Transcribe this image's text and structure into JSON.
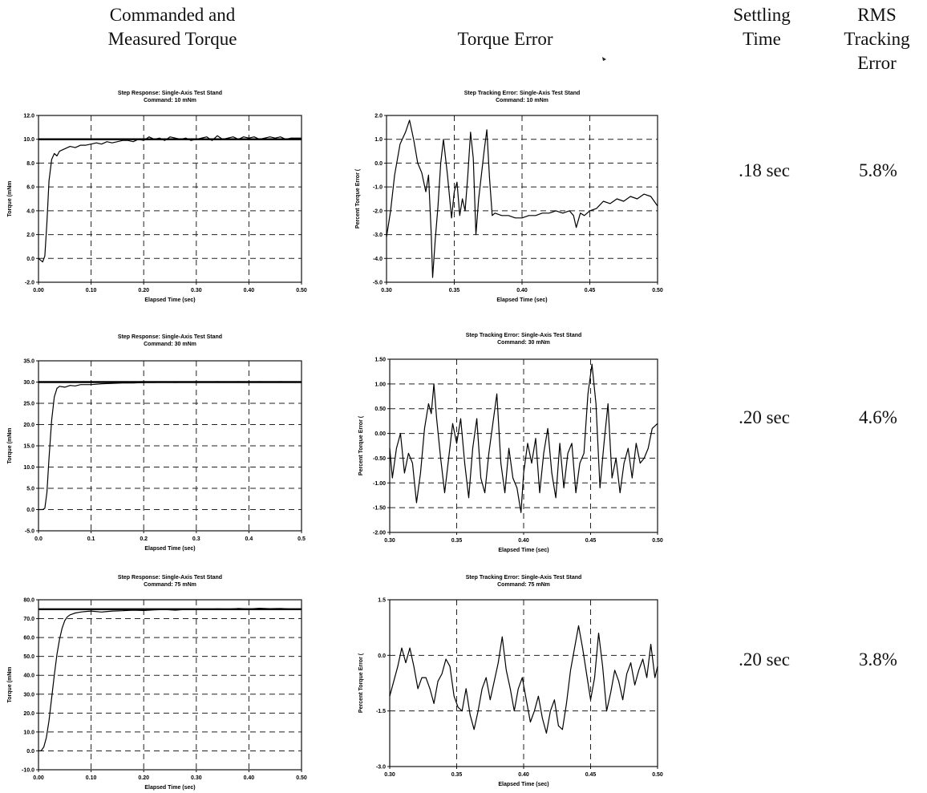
{
  "headers": {
    "col1": [
      "Commanded and",
      "Measured Torque"
    ],
    "col2": [
      "Torque Error"
    ],
    "col3": [
      "Settling",
      "Time"
    ],
    "col4": [
      "RMS",
      "Tracking",
      "Error"
    ]
  },
  "rows": [
    {
      "settling_time": ".18 sec",
      "rms_error": "5.8%"
    },
    {
      "settling_time": ".20 sec",
      "rms_error": "4.6%"
    },
    {
      "settling_time": ".20 sec",
      "rms_error": "3.8%"
    }
  ],
  "chart_data": [
    {
      "type": "line",
      "title": "Step Response: Single-Axis Test Stand",
      "subtitle": "Command: 10 mNm",
      "xlabel": "Elapsed Time (sec)",
      "ylabel": "Torque (mNm",
      "xlim": [
        0,
        0.5
      ],
      "ylim": [
        -2,
        12
      ],
      "xticks": [
        0,
        0.1,
        0.2,
        0.3,
        0.4,
        0.5
      ],
      "xtick_labels": [
        "0.00",
        "0.10",
        "0.20",
        "0.30",
        "0.40",
        "0.50"
      ],
      "yticks": [
        -2,
        0,
        2,
        4,
        6,
        8,
        10,
        12
      ],
      "ytick_labels": [
        "-2.0",
        "0.0",
        "2.0",
        "4.0",
        "6.0",
        "8.0",
        "10.0",
        "12.0"
      ],
      "grid": true,
      "series": [
        {
          "role": "command",
          "x": [
            0,
            0.5
          ],
          "y": [
            10,
            10
          ]
        },
        {
          "role": "measured",
          "x": [
            0,
            0.008,
            0.012,
            0.016,
            0.02,
            0.025,
            0.03,
            0.035,
            0.04,
            0.05,
            0.06,
            0.07,
            0.08,
            0.09,
            0.1,
            0.11,
            0.12,
            0.13,
            0.14,
            0.15,
            0.16,
            0.17,
            0.18,
            0.19,
            0.2,
            0.21,
            0.22,
            0.23,
            0.24,
            0.25,
            0.26,
            0.27,
            0.28,
            0.29,
            0.3,
            0.31,
            0.32,
            0.33,
            0.34,
            0.35,
            0.36,
            0.37,
            0.38,
            0.39,
            0.4,
            0.41,
            0.42,
            0.43,
            0.44,
            0.45,
            0.46,
            0.47,
            0.48,
            0.49,
            0.5
          ],
          "y": [
            0.0,
            -0.3,
            0.2,
            3.0,
            6.5,
            8.3,
            8.8,
            8.6,
            9.0,
            9.2,
            9.4,
            9.3,
            9.5,
            9.5,
            9.6,
            9.7,
            9.6,
            9.8,
            9.7,
            9.8,
            9.9,
            9.9,
            9.8,
            10.0,
            9.9,
            10.2,
            10.0,
            10.1,
            9.9,
            10.2,
            10.1,
            10.0,
            10.1,
            9.9,
            10.0,
            10.1,
            10.2,
            9.9,
            10.3,
            10.0,
            10.1,
            10.2,
            10.0,
            10.2,
            10.1,
            10.2,
            10.0,
            10.1,
            10.2,
            10.1,
            10.2,
            10.0,
            10.1,
            10.1,
            10.1
          ]
        }
      ]
    },
    {
      "type": "line",
      "title": "Step Tracking Error: Single-Axis Test Stand",
      "subtitle": "Command: 10 mNm",
      "xlabel": "Elapsed Time (sec)",
      "ylabel": "Percent Torque Error (",
      "xlim": [
        0.3,
        0.5
      ],
      "ylim": [
        -5,
        2
      ],
      "xticks": [
        0.3,
        0.35,
        0.4,
        0.45,
        0.5
      ],
      "xtick_labels": [
        "0.30",
        "0.35",
        "0.40",
        "0.45",
        "0.50"
      ],
      "yticks": [
        -5,
        -4,
        -3,
        -2,
        -1,
        0,
        1,
        2
      ],
      "ytick_labels": [
        "-5.0",
        "-4.0",
        "-3.0",
        "-2.0",
        "-1.0",
        "0.0",
        "1.0",
        "2.0"
      ],
      "grid": true,
      "series": [
        {
          "role": "error",
          "x": [
            0.3,
            0.303,
            0.306,
            0.31,
            0.314,
            0.317,
            0.32,
            0.323,
            0.326,
            0.329,
            0.331,
            0.333,
            0.334,
            0.336,
            0.338,
            0.34,
            0.342,
            0.345,
            0.348,
            0.35,
            0.352,
            0.354,
            0.356,
            0.358,
            0.36,
            0.362,
            0.364,
            0.366,
            0.368,
            0.37,
            0.372,
            0.374,
            0.376,
            0.378,
            0.38,
            0.385,
            0.39,
            0.395,
            0.4,
            0.405,
            0.41,
            0.415,
            0.42,
            0.425,
            0.43,
            0.435,
            0.438,
            0.44,
            0.443,
            0.446,
            0.45,
            0.455,
            0.46,
            0.465,
            0.47,
            0.475,
            0.48,
            0.485,
            0.49,
            0.495,
            0.5
          ],
          "y": [
            -3.1,
            -2.0,
            -0.5,
            0.8,
            1.3,
            1.8,
            1.0,
            0.0,
            -0.4,
            -1.2,
            -0.5,
            -3.0,
            -4.8,
            -3.2,
            -1.8,
            0.0,
            1.0,
            -0.5,
            -2.3,
            -1.2,
            -0.8,
            -2.2,
            -1.5,
            -2.0,
            -0.5,
            1.3,
            0.2,
            -3.0,
            -1.5,
            -0.5,
            0.5,
            1.4,
            -0.6,
            -2.2,
            -2.1,
            -2.2,
            -2.2,
            -2.3,
            -2.3,
            -2.2,
            -2.2,
            -2.1,
            -2.1,
            -2.0,
            -2.1,
            -2.0,
            -2.2,
            -2.7,
            -2.1,
            -2.2,
            -2.0,
            -1.9,
            -1.6,
            -1.7,
            -1.5,
            -1.6,
            -1.4,
            -1.5,
            -1.3,
            -1.4,
            -1.8
          ]
        }
      ]
    },
    {
      "type": "line",
      "title": "Step Response: Single-Axis Test Stand",
      "subtitle": "Command: 30 mNm",
      "xlabel": "Elapsed Time (sec)",
      "ylabel": "Torque (mNm",
      "xlim": [
        0,
        0.5
      ],
      "ylim": [
        -5,
        35
      ],
      "xticks": [
        0,
        0.1,
        0.2,
        0.3,
        0.4,
        0.5
      ],
      "xtick_labels": [
        "0.0",
        "0.1",
        "0.2",
        "0.3",
        "0.4",
        "0.5"
      ],
      "yticks": [
        -5,
        0,
        5,
        10,
        15,
        20,
        25,
        30,
        35
      ],
      "ytick_labels": [
        "-5.0",
        "0.0",
        "5.0",
        "10.0",
        "15.0",
        "20.0",
        "25.0",
        "30.0",
        "35.0"
      ],
      "grid": true,
      "series": [
        {
          "role": "command",
          "x": [
            0,
            0.5
          ],
          "y": [
            30,
            30
          ]
        },
        {
          "role": "measured",
          "x": [
            0,
            0.008,
            0.012,
            0.016,
            0.02,
            0.025,
            0.03,
            0.035,
            0.04,
            0.05,
            0.06,
            0.07,
            0.08,
            0.1,
            0.12,
            0.14,
            0.16,
            0.18,
            0.2,
            0.22,
            0.24,
            0.26,
            0.28,
            0.3,
            0.32,
            0.34,
            0.36,
            0.38,
            0.4,
            0.42,
            0.44,
            0.46,
            0.48,
            0.5
          ],
          "y": [
            0.0,
            0.0,
            0.3,
            4.0,
            12.0,
            21.0,
            26.5,
            28.5,
            29.0,
            28.8,
            29.2,
            29.1,
            29.4,
            29.4,
            29.6,
            29.7,
            29.8,
            29.8,
            29.9,
            29.9,
            30.0,
            29.9,
            30.0,
            30.0,
            30.0,
            30.1,
            30.0,
            30.1,
            30.0,
            30.1,
            30.0,
            30.1,
            30.0,
            30.0
          ]
        }
      ]
    },
    {
      "type": "line",
      "title": "Step Tracking Error: Single-Axis Test Stand",
      "subtitle": "Command: 30 mNm",
      "xlabel": "Elapsed Time (sec)",
      "ylabel": "Percent Torque Error (",
      "xlim": [
        0.3,
        0.5
      ],
      "ylim": [
        -2,
        1.5
      ],
      "xticks": [
        0.3,
        0.35,
        0.4,
        0.45,
        0.5
      ],
      "xtick_labels": [
        "0.30",
        "0.35",
        "0.40",
        "0.45",
        "0.50"
      ],
      "yticks": [
        -2,
        -1.5,
        -1,
        -0.5,
        0,
        0.5,
        1,
        1.5
      ],
      "ytick_labels": [
        "-2.00",
        "-1.50",
        "-1.00",
        "-0.50",
        "0.00",
        "0.50",
        "1.00",
        "1.50"
      ],
      "grid": true,
      "series": [
        {
          "role": "error",
          "x": [
            0.3,
            0.302,
            0.305,
            0.308,
            0.311,
            0.314,
            0.317,
            0.32,
            0.323,
            0.326,
            0.329,
            0.331,
            0.333,
            0.335,
            0.338,
            0.341,
            0.344,
            0.347,
            0.35,
            0.353,
            0.356,
            0.359,
            0.362,
            0.365,
            0.368,
            0.371,
            0.374,
            0.377,
            0.38,
            0.383,
            0.386,
            0.389,
            0.392,
            0.395,
            0.398,
            0.4,
            0.403,
            0.406,
            0.409,
            0.412,
            0.415,
            0.418,
            0.421,
            0.424,
            0.427,
            0.43,
            0.433,
            0.436,
            0.439,
            0.442,
            0.445,
            0.448,
            0.451,
            0.454,
            0.457,
            0.46,
            0.463,
            0.466,
            0.469,
            0.472,
            0.475,
            0.478,
            0.481,
            0.484,
            0.487,
            0.49,
            0.493,
            0.496,
            0.5
          ],
          "y": [
            -0.3,
            -0.9,
            -0.3,
            0.0,
            -0.8,
            -0.4,
            -0.6,
            -1.4,
            -0.8,
            0.1,
            0.6,
            0.4,
            1.0,
            0.3,
            -0.5,
            -1.2,
            -0.5,
            0.2,
            -0.2,
            0.3,
            -0.6,
            -1.3,
            -0.3,
            0.3,
            -0.9,
            -1.2,
            -0.4,
            0.2,
            0.8,
            -0.6,
            -1.2,
            -0.3,
            -0.9,
            -1.1,
            -1.6,
            -0.8,
            -0.2,
            -0.6,
            -0.1,
            -1.2,
            -0.4,
            0.1,
            -0.8,
            -1.3,
            -0.2,
            -1.1,
            -0.4,
            -0.2,
            -1.2,
            -0.6,
            -0.4,
            0.8,
            1.4,
            0.6,
            -1.1,
            -0.2,
            0.6,
            -0.9,
            -0.5,
            -1.2,
            -0.6,
            -0.3,
            -0.9,
            -0.2,
            -0.6,
            -0.5,
            -0.3,
            0.1,
            0.2
          ]
        }
      ]
    },
    {
      "type": "line",
      "title": "Step Response: Single-Axis Test Stand",
      "subtitle": "Command: 75 mNm",
      "xlabel": "Elapsed Time (sec)",
      "ylabel": "Torque (mNm",
      "xlim": [
        0,
        0.5
      ],
      "ylim": [
        -10,
        80
      ],
      "xticks": [
        0,
        0.1,
        0.2,
        0.3,
        0.4,
        0.5
      ],
      "xtick_labels": [
        "0.00",
        "0.10",
        "0.20",
        "0.30",
        "0.40",
        "0.50"
      ],
      "yticks": [
        -10,
        0,
        10,
        20,
        30,
        40,
        50,
        60,
        70,
        80
      ],
      "ytick_labels": [
        "-10.0",
        "0.0",
        "10.0",
        "20.0",
        "30.0",
        "40.0",
        "50.0",
        "60.0",
        "70.0",
        "80.0"
      ],
      "grid": true,
      "series": [
        {
          "role": "command",
          "x": [
            0,
            0.5
          ],
          "y": [
            75,
            75
          ]
        },
        {
          "role": "measured",
          "x": [
            0,
            0.005,
            0.01,
            0.015,
            0.02,
            0.025,
            0.03,
            0.035,
            0.04,
            0.045,
            0.05,
            0.055,
            0.06,
            0.065,
            0.07,
            0.08,
            0.09,
            0.1,
            0.12,
            0.14,
            0.16,
            0.18,
            0.2,
            0.22,
            0.24,
            0.26,
            0.28,
            0.3,
            0.32,
            0.34,
            0.36,
            0.38,
            0.4,
            0.42,
            0.44,
            0.46,
            0.48,
            0.5
          ],
          "y": [
            0.0,
            0.0,
            2.0,
            7.0,
            16.0,
            28.0,
            40.0,
            51.0,
            59.0,
            65.0,
            69.0,
            71.0,
            72.0,
            72.5,
            73.0,
            73.5,
            73.8,
            74.0,
            73.5,
            74.0,
            74.2,
            74.5,
            74.3,
            74.6,
            74.8,
            74.5,
            74.9,
            75.0,
            74.8,
            75.2,
            75.0,
            75.4,
            75.1,
            75.5,
            75.3,
            75.4,
            75.1,
            75.2
          ]
        }
      ]
    },
    {
      "type": "line",
      "title": "Step Tracking Error: Single-Axis Test Stand",
      "subtitle": "Command: 75 mNm",
      "xlabel": "Elapsed Time (sec)",
      "ylabel": "Percent Torque Error (",
      "xlim": [
        0.3,
        0.5
      ],
      "ylim": [
        -3,
        1.5
      ],
      "xticks": [
        0.3,
        0.35,
        0.4,
        0.45,
        0.5
      ],
      "xtick_labels": [
        "0.30",
        "0.35",
        "0.40",
        "0.45",
        "0.50"
      ],
      "yticks": [
        -3,
        -1.5,
        0,
        1.5
      ],
      "ytick_labels": [
        "-3.0",
        "-1.5",
        "0.0",
        "1.5"
      ],
      "grid": true,
      "series": [
        {
          "role": "error",
          "x": [
            0.3,
            0.303,
            0.306,
            0.309,
            0.312,
            0.315,
            0.318,
            0.321,
            0.324,
            0.327,
            0.33,
            0.333,
            0.336,
            0.339,
            0.342,
            0.345,
            0.348,
            0.351,
            0.354,
            0.357,
            0.36,
            0.363,
            0.366,
            0.369,
            0.372,
            0.375,
            0.378,
            0.381,
            0.384,
            0.387,
            0.39,
            0.393,
            0.396,
            0.399,
            0.402,
            0.405,
            0.408,
            0.411,
            0.414,
            0.417,
            0.42,
            0.423,
            0.426,
            0.429,
            0.432,
            0.435,
            0.438,
            0.441,
            0.444,
            0.447,
            0.45,
            0.453,
            0.456,
            0.459,
            0.462,
            0.465,
            0.468,
            0.471,
            0.474,
            0.477,
            0.48,
            0.483,
            0.486,
            0.489,
            0.492,
            0.495,
            0.498,
            0.5
          ],
          "y": [
            -1.1,
            -0.7,
            -0.3,
            0.2,
            -0.2,
            0.2,
            -0.3,
            -0.9,
            -0.6,
            -0.6,
            -0.9,
            -1.3,
            -0.7,
            -0.5,
            -0.1,
            -0.3,
            -1.1,
            -1.4,
            -1.5,
            -0.9,
            -1.6,
            -2.0,
            -1.5,
            -0.9,
            -0.6,
            -1.2,
            -0.7,
            -0.2,
            0.5,
            -0.4,
            -0.9,
            -1.5,
            -0.9,
            -0.6,
            -1.2,
            -1.8,
            -1.5,
            -1.1,
            -1.7,
            -2.1,
            -1.5,
            -1.2,
            -1.9,
            -2.0,
            -1.3,
            -0.4,
            0.2,
            0.8,
            0.2,
            -0.5,
            -1.2,
            -0.6,
            0.6,
            -0.3,
            -1.5,
            -1.0,
            -0.4,
            -0.7,
            -1.2,
            -0.5,
            -0.2,
            -0.8,
            -0.4,
            -0.1,
            -0.6,
            0.3,
            -0.6,
            -0.3
          ]
        }
      ]
    }
  ]
}
